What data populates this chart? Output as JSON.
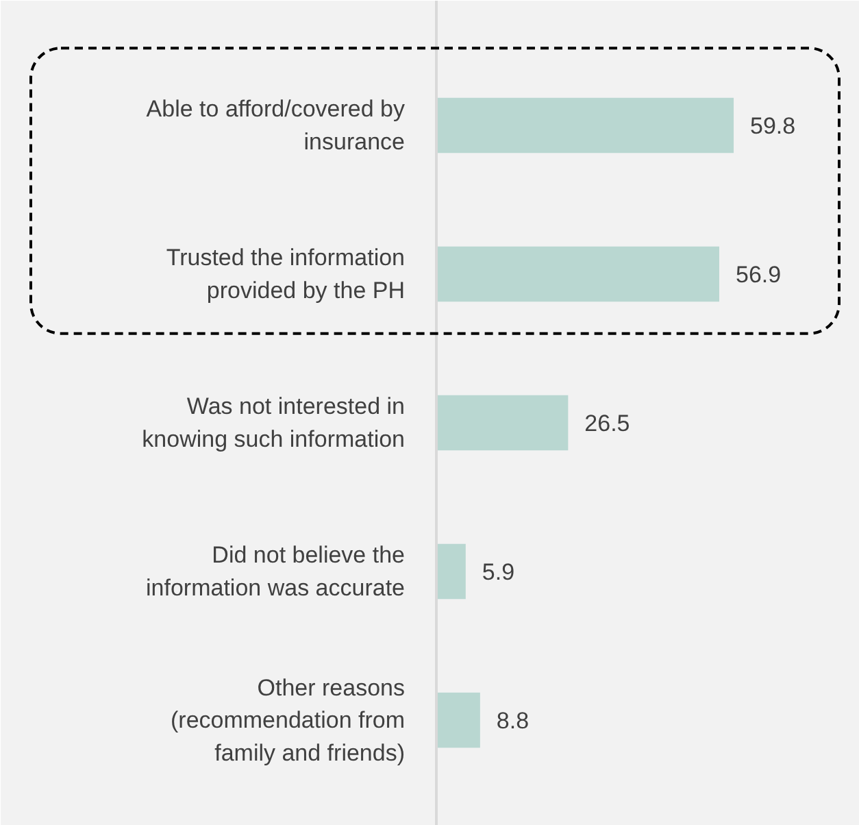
{
  "chart_data": {
    "type": "bar",
    "orientation": "horizontal",
    "categories": [
      "Able to afford/covered by insurance",
      "Trusted the information provided by the PH",
      "Was not interested in knowing such information",
      "Did not believe the information was accurate",
      "Other reasons (recommendation from family and friends)"
    ],
    "values": [
      59.8,
      56.9,
      26.5,
      5.9,
      8.8
    ],
    "color": "#b9d7d1",
    "data_labels": true
  }
}
